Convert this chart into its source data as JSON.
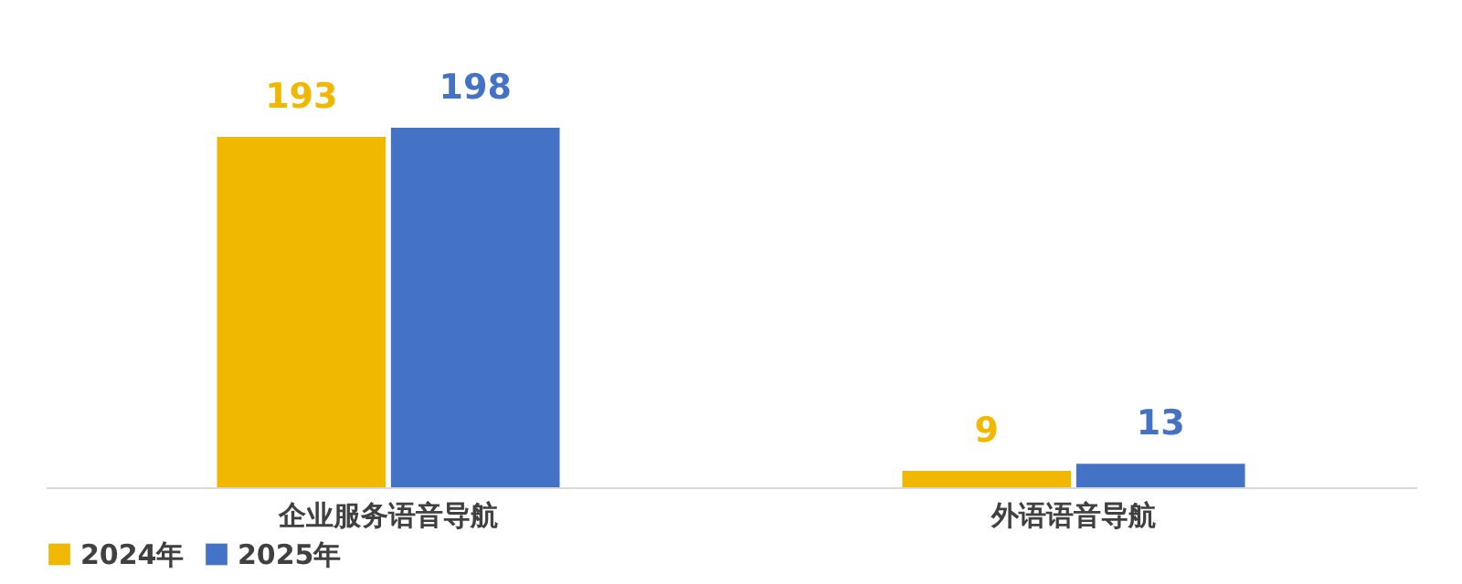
{
  "chart_data": {
    "type": "bar",
    "categories": [
      "企业服务语音导航",
      "外语语音导航"
    ],
    "series": [
      {
        "name": "2024年",
        "color": "#f0b800",
        "values": [
          193,
          9
        ]
      },
      {
        "name": "2025年",
        "color": "#4472c4",
        "values": [
          198,
          13
        ]
      }
    ],
    "data_labels": true,
    "legend": "bottom",
    "grid": false
  }
}
